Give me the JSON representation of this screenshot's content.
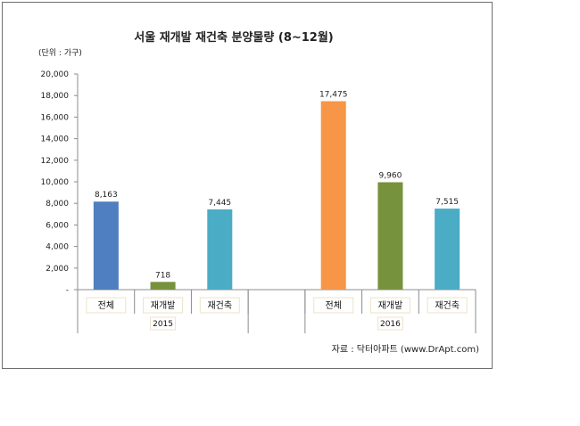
{
  "chart_data": {
    "type": "bar",
    "title": "서울 재개발 재건축 분양물량 (8~12월)",
    "unit_label": "(단위 : 가구)",
    "source": "자료 : 닥터아파트 (www.DrApt.com)",
    "ylim": [
      0,
      20000
    ],
    "yticks": [
      "20,000",
      "18,000",
      "16,000",
      "14,000",
      "12,000",
      "10,000",
      "8,000",
      "6,000",
      "4,000",
      "2,000",
      "-"
    ],
    "grid": false,
    "legend": "none",
    "groups": [
      {
        "label": "2015",
        "bars": [
          {
            "category": "전체",
            "value": 8163,
            "label": "8,163",
            "color": "#4f7fc0"
          },
          {
            "category": "재개발",
            "value": 718,
            "label": "718",
            "color": "#77923c"
          },
          {
            "category": "재건축",
            "value": 7445,
            "label": "7,445",
            "color": "#4bacc6"
          }
        ]
      },
      {
        "label": "2016",
        "bars": [
          {
            "category": "전체",
            "value": 17475,
            "label": "17,475",
            "color": "#f79646"
          },
          {
            "category": "재개발",
            "value": 9960,
            "label": "9,960",
            "color": "#77923c"
          },
          {
            "category": "재건축",
            "value": 7515,
            "label": "7,515",
            "color": "#4bacc6"
          }
        ]
      }
    ]
  }
}
